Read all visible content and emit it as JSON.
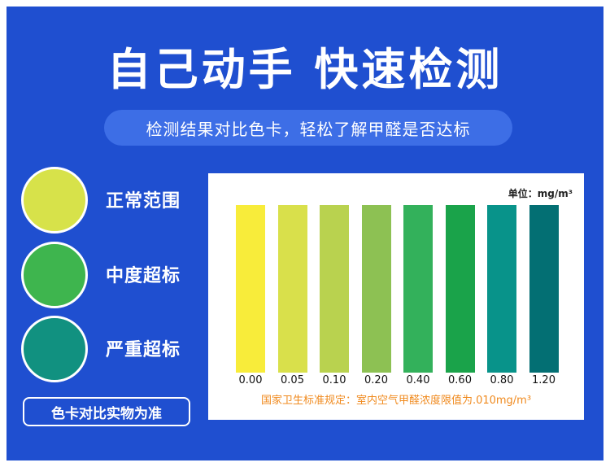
{
  "title": "自己动手 快速检测",
  "subtitle": "检测结果对比色卡，轻松了解甲醛是否达标",
  "legend": [
    {
      "label": "正常范围",
      "color": "#d7e24a"
    },
    {
      "label": "中度超标",
      "color": "#3eb54e"
    },
    {
      "label": "严重超标",
      "color": "#119180"
    }
  ],
  "note": "色卡对比实物为准",
  "card": {
    "unit": "单位：mg/m³",
    "standard_text": "国家卫生标准规定：室内空气甲醛浓度限值为.010mg/m³",
    "bars": [
      {
        "label": "0.00",
        "color": "#f8ec3a"
      },
      {
        "label": "0.05",
        "color": "#d9e04b"
      },
      {
        "label": "0.10",
        "color": "#b9d24f"
      },
      {
        "label": "0.20",
        "color": "#8dc153"
      },
      {
        "label": "0.40",
        "color": "#33b15b"
      },
      {
        "label": "0.60",
        "color": "#1aa34a"
      },
      {
        "label": "0.80",
        "color": "#08938a"
      },
      {
        "label": "1.20",
        "color": "#036f73"
      }
    ]
  }
}
